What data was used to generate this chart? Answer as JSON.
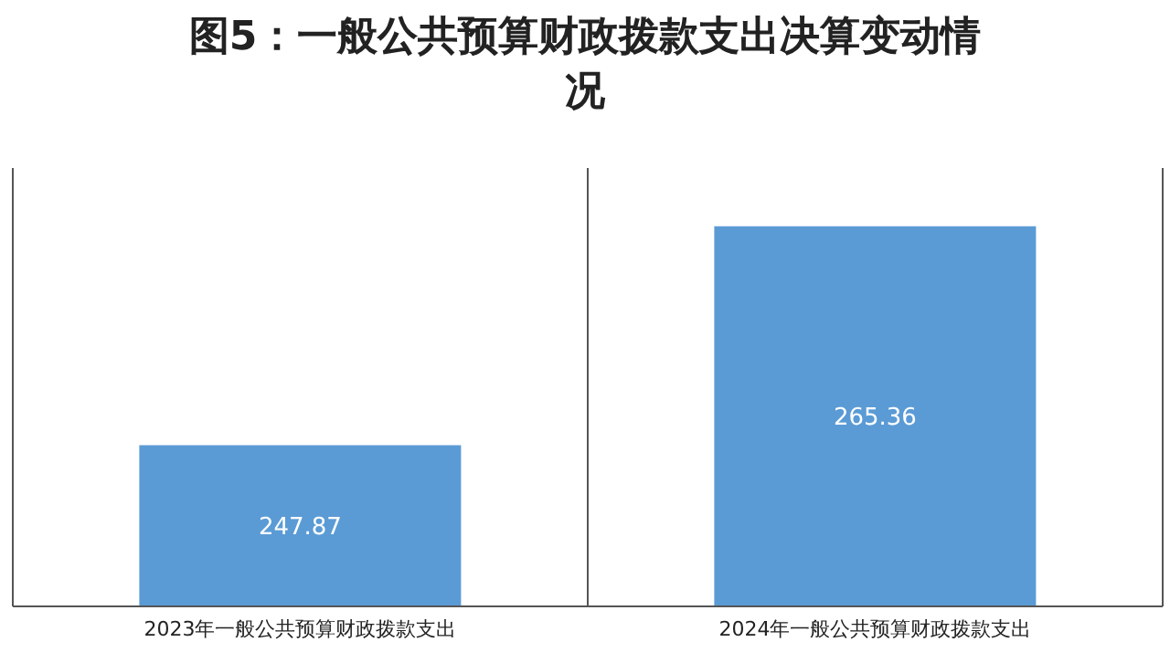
{
  "chart_data": {
    "type": "bar",
    "title": "图5：一般公共预算财政拨款支出决算变动情况",
    "categories": [
      "2023年一般公共预算财政拨款支出",
      "2024年一般公共预算财政拨款支出"
    ],
    "values": [
      247.87,
      265.36
    ],
    "color": "#5b9bd5",
    "ylim": [
      235,
      270
    ],
    "tick_labels": "x",
    "grid": "x",
    "data_labels": true,
    "legend": false
  }
}
